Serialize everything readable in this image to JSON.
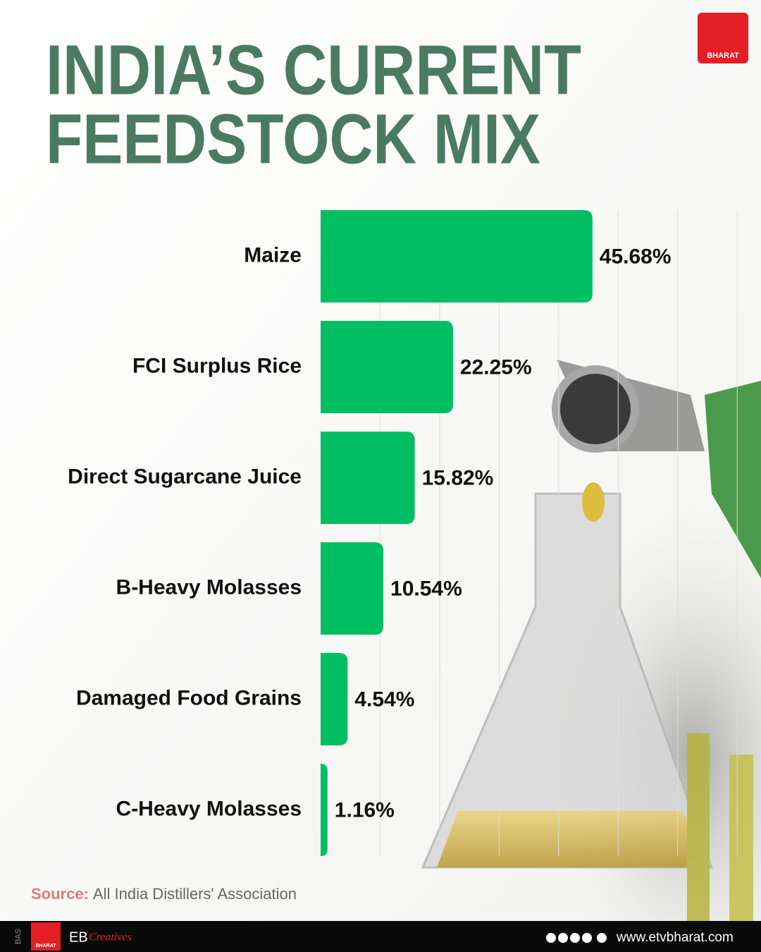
{
  "chart_data": {
    "type": "bar",
    "orientation": "horizontal",
    "title": [
      "INDIA’S CURRENT",
      "FEEDSTOCK MIX"
    ],
    "categories": [
      "Maize",
      "FCI Surplus Rice",
      "Direct Sugarcane Juice",
      "B-Heavy Molasses",
      "Damaged Food Grains",
      "C-Heavy Molasses"
    ],
    "values": [
      45.68,
      22.25,
      15.82,
      10.54,
      4.54,
      1.16
    ],
    "value_labels": [
      "45.68%",
      "22.25%",
      "15.82%",
      "10.54%",
      "4.54%",
      "1.16%"
    ],
    "color": "#00bf63",
    "xlim": [
      0,
      74
    ],
    "xticks": [
      10,
      20,
      30,
      40,
      50,
      60,
      70
    ],
    "grid": true,
    "source_label": "Source:",
    "source": "All India Distillers' Association"
  },
  "branding": {
    "logo": "BHARAT",
    "side_tag": "BAS",
    "footer_logo": "BHARAT",
    "studio": "EB",
    "studio_sub": "Creatives",
    "website": "www.etvbharat.com"
  }
}
